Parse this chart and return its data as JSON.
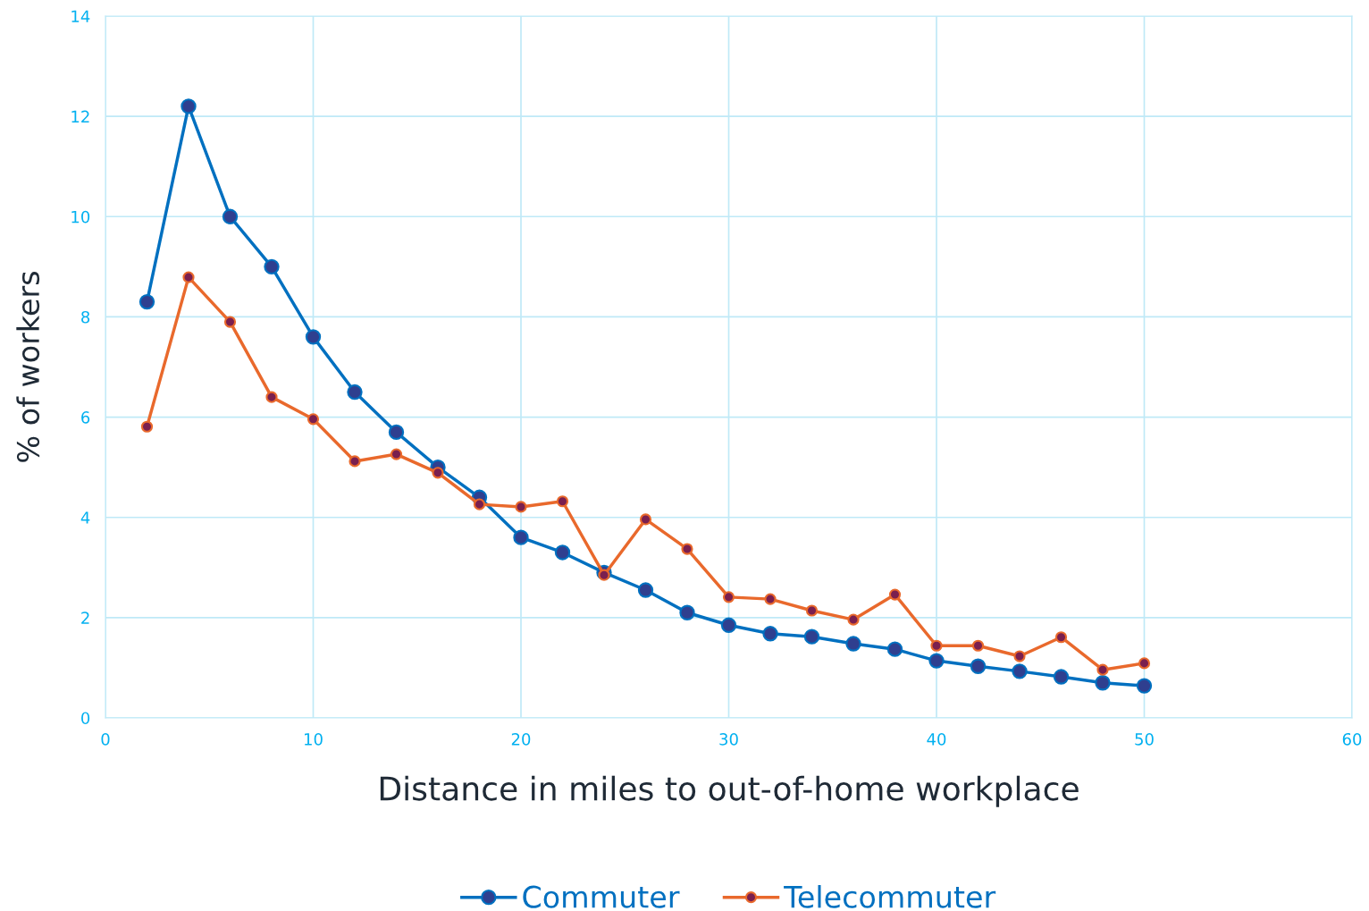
{
  "chart_data": {
    "type": "line",
    "xlabel": "Distance in miles to out-of-home workplace",
    "ylabel": "% of workers",
    "x": [
      2,
      4,
      6,
      8,
      10,
      12,
      14,
      16,
      18,
      20,
      22,
      24,
      26,
      28,
      30,
      32,
      34,
      36,
      38,
      40,
      42,
      44,
      46,
      48,
      50
    ],
    "series": [
      {
        "name": "Commuter",
        "color": "#0070c0",
        "values": [
          8.3,
          12.2,
          10.0,
          9.0,
          7.6,
          6.5,
          5.7,
          5.0,
          4.4,
          3.6,
          3.3,
          2.9,
          2.55,
          2.1,
          1.85,
          1.68,
          1.62,
          1.48,
          1.37,
          1.14,
          1.03,
          0.93,
          0.82,
          0.7,
          0.64
        ]
      },
      {
        "name": "Telecommuter",
        "color": "#e9692c",
        "values": [
          5.81,
          8.79,
          7.9,
          6.4,
          5.96,
          5.12,
          5.26,
          4.89,
          4.26,
          4.21,
          4.32,
          2.85,
          3.96,
          3.37,
          2.41,
          2.37,
          2.14,
          1.96,
          2.46,
          1.44,
          1.44,
          1.23,
          1.61,
          0.96,
          1.09
        ]
      }
    ],
    "xlim": [
      0,
      60
    ],
    "xticks": [
      0,
      10,
      20,
      30,
      40,
      50,
      60
    ],
    "ylim": [
      0,
      14
    ],
    "yticks": [
      0,
      2,
      4,
      6,
      8,
      10,
      12,
      14
    ],
    "grid": true,
    "legend": "bottom",
    "marker": "circle",
    "line_style": "solid"
  }
}
